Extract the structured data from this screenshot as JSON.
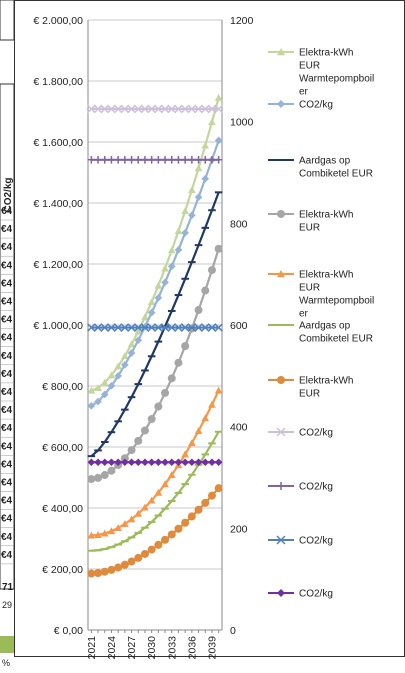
{
  "background_sheet": {
    "row_fragments": [
      "€4",
      "€4",
      "€4",
      "€4",
      "€4",
      "€4",
      "€4",
      "€4",
      "€4",
      "€4",
      "€4",
      "€4",
      "€4",
      "€4",
      "€4",
      "€4",
      "€4",
      "€4",
      "€4",
      "€4"
    ],
    "side_label": "CO2/kg",
    "footer_values": [
      "71",
      "29"
    ],
    "footer_percent": "%"
  },
  "chart_data": {
    "type": "line",
    "x": [
      2021,
      2022,
      2023,
      2024,
      2025,
      2026,
      2027,
      2028,
      2029,
      2030,
      2031,
      2032,
      2033,
      2034,
      2035,
      2036,
      2037,
      2038,
      2039,
      2040
    ],
    "x_tick_labels": [
      "2021",
      "2024",
      "2027",
      "2030",
      "2033",
      "2036",
      "2039"
    ],
    "y_left": {
      "min": 0,
      "max": 2000,
      "ticks": [
        "€ 0,00",
        "€ 200,00",
        "€ 400,00",
        "€ 600,00",
        "€ 800,00",
        "€ 1.000,00",
        "€ 1.200,00",
        "€ 1.400,00",
        "€ 1.600,00",
        "€ 1.800,00",
        "€ 2.000,00"
      ]
    },
    "y_right": {
      "min": 0,
      "max": 1200,
      "ticks": [
        "0",
        "200",
        "400",
        "600",
        "800",
        "1000",
        "1200"
      ]
    },
    "gridlines": "horizontal",
    "legend_position": "right",
    "series": [
      {
        "name": "Elektra-kWh EUR Warmtepompboiler",
        "axis": "left",
        "color": "#c3d69b",
        "marker": "triangle",
        "start": 785,
        "end": 1745,
        "curve": 1.6
      },
      {
        "name": "CO2/kg",
        "axis": "left",
        "color": "#95b3d7",
        "marker": "diamond",
        "start": 735,
        "end": 1605,
        "curve": 1.4
      },
      {
        "name": "Aardgas op Combiketel EUR",
        "axis": "left",
        "color": "#1f3864",
        "marker": "dash",
        "start": 570,
        "end": 1435,
        "curve": 1.3
      },
      {
        "name": "Elektra-kWh EUR",
        "axis": "left",
        "color": "#a6a6a6",
        "marker": "circle",
        "start": 495,
        "end": 1250,
        "curve": 1.8
      },
      {
        "name": "Elektra-kWh EUR Warmtepompboiler",
        "axis": "left",
        "color": "#f79646",
        "marker": "triangle",
        "start": 310,
        "end": 785,
        "curve": 1.9
      },
      {
        "name": "Aardgas op Combiketel EUR",
        "axis": "left",
        "color": "#9bbb59",
        "marker": "dash",
        "start": 260,
        "end": 650,
        "curve": 1.9
      },
      {
        "name": "Elektra-kWh EUR",
        "axis": "left",
        "color": "#e08a3c",
        "marker": "circle",
        "start": 185,
        "end": 465,
        "curve": 1.7
      },
      {
        "name": "CO2/kg",
        "axis": "right",
        "color": "#ccc0da",
        "marker": "x",
        "start": 1025,
        "end": 1025,
        "curve": 1
      },
      {
        "name": "CO2/kg",
        "axis": "right",
        "color": "#8064a2",
        "marker": "plus",
        "start": 925,
        "end": 925,
        "curve": 1
      },
      {
        "name": "CO2/kg",
        "axis": "right",
        "color": "#4f81bd",
        "marker": "x",
        "start": 595,
        "end": 595,
        "curve": 1
      },
      {
        "name": "CO2/kg",
        "axis": "right",
        "color": "#7030a0",
        "marker": "diamond",
        "start": 330,
        "end": 330,
        "curve": 1
      }
    ],
    "legend": [
      {
        "label": "Elektra-kWh EUR Warmtepompboil er",
        "color": "#c3d69b",
        "marker": "triangle"
      },
      {
        "label": "CO2/kg",
        "color": "#95b3d7",
        "marker": "diamond"
      },
      {
        "label": "Aardgas op Combiketel EUR",
        "color": "#1f3864",
        "marker": "dash"
      },
      {
        "label": "Elektra-kWh EUR",
        "color": "#a6a6a6",
        "marker": "circle"
      },
      {
        "label": "Elektra-kWh EUR Warmtepompboil er",
        "color": "#f79646",
        "marker": "triangle"
      },
      {
        "label": "Aardgas op Combiketel EUR",
        "color": "#9bbb59",
        "marker": "line"
      },
      {
        "label": "Elektra-kWh EUR",
        "color": "#e08a3c",
        "marker": "circle"
      },
      {
        "label": "CO2/kg",
        "color": "#ccc0da",
        "marker": "x"
      },
      {
        "label": "CO2/kg",
        "color": "#8064a2",
        "marker": "plus"
      },
      {
        "label": "CO2/kg",
        "color": "#4f81bd",
        "marker": "x"
      },
      {
        "label": "CO2/kg",
        "color": "#7030a0",
        "marker": "diamond"
      }
    ]
  }
}
